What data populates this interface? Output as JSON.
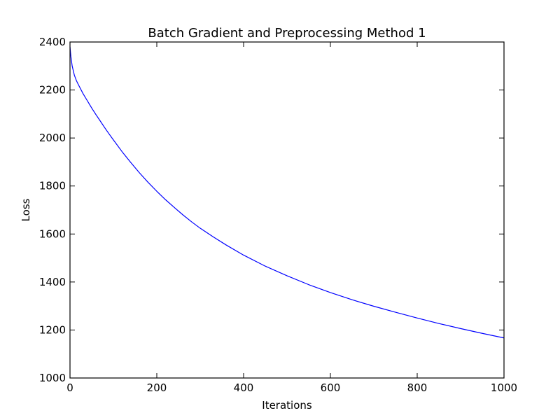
{
  "chart_data": {
    "type": "line",
    "title": "Batch Gradient and Preprocessing Method 1",
    "xlabel": "Iterations",
    "ylabel": "Loss",
    "xlim": [
      0,
      1000
    ],
    "ylim": [
      1000,
      2400
    ],
    "xticks": [
      0,
      200,
      400,
      600,
      800,
      1000
    ],
    "yticks": [
      1000,
      1200,
      1400,
      1600,
      1800,
      2000,
      2200,
      2400
    ],
    "grid": false,
    "series": [
      {
        "color": "#0000ff",
        "x": [
          0,
          2,
          5,
          10,
          15,
          20,
          30,
          40,
          50,
          60,
          70,
          80,
          90,
          100,
          120,
          140,
          160,
          180,
          200,
          220,
          240,
          260,
          280,
          300,
          330,
          360,
          400,
          450,
          500,
          550,
          600,
          650,
          700,
          750,
          800,
          850,
          900,
          950,
          1000
        ],
        "y": [
          2380,
          2340,
          2300,
          2262,
          2238,
          2220,
          2185,
          2155,
          2125,
          2097,
          2070,
          2043,
          2017,
          1992,
          1943,
          1898,
          1855,
          1815,
          1778,
          1743,
          1711,
          1680,
          1651,
          1624,
          1588,
          1554,
          1512,
          1466,
          1426,
          1389,
          1356,
          1326,
          1299,
          1274,
          1250,
          1227,
          1206,
          1186,
          1167
        ]
      }
    ]
  }
}
